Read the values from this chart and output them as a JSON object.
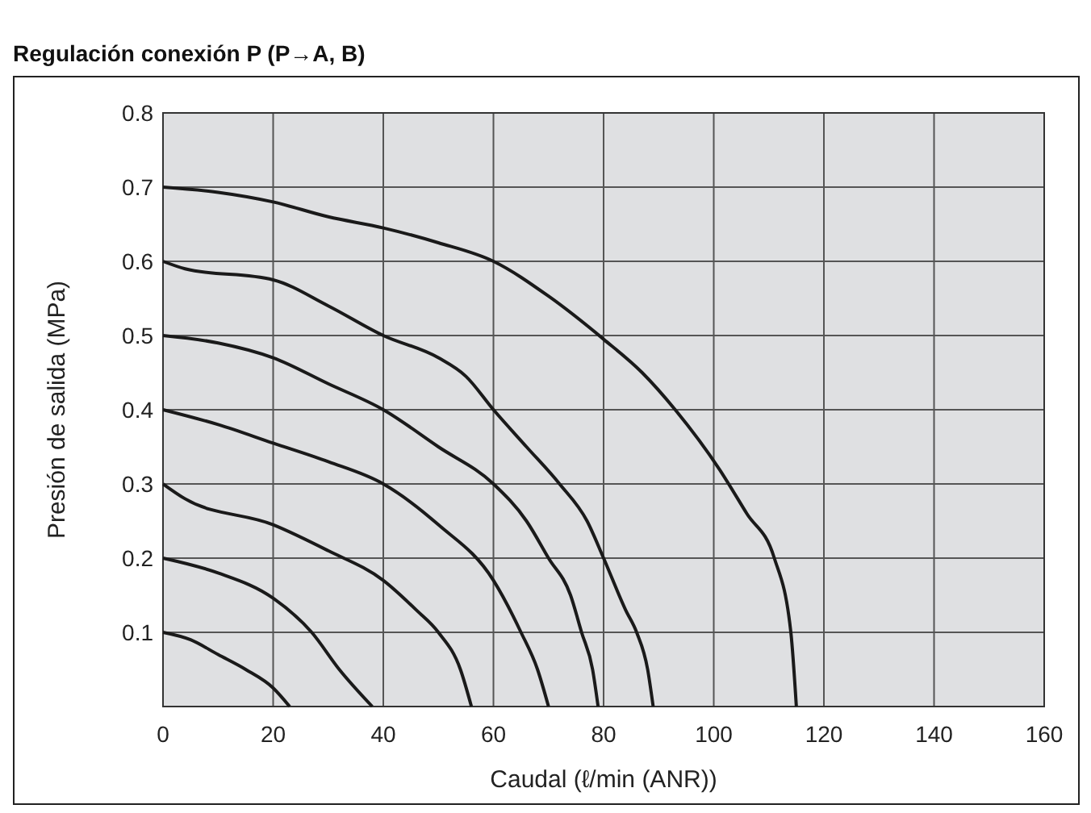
{
  "chart_data": {
    "type": "line",
    "title": "Regulación conexión P (P→A, B)",
    "xlabel": "Caudal (ℓ/min (ANR))",
    "ylabel": "Presión de salida (MPa)",
    "xlim": [
      0,
      160
    ],
    "xticks": [
      0,
      20,
      40,
      60,
      80,
      100,
      120,
      140,
      160
    ],
    "ylim": [
      0,
      0.8
    ],
    "yticks": [
      0.1,
      0.2,
      0.3,
      0.4,
      0.5,
      0.6,
      0.7,
      0.8
    ],
    "grid": true,
    "marker": "none",
    "line_style": "solid",
    "series": [
      {
        "color": "#1a1a1a",
        "x": [
          0,
          5,
          10,
          15,
          20,
          23
        ],
        "values": [
          0.1,
          0.09,
          0.07,
          0.05,
          0.025,
          0
        ]
      },
      {
        "color": "#1a1a1a",
        "x": [
          0,
          10,
          20,
          27,
          32,
          38
        ],
        "values": [
          0.2,
          0.18,
          0.146,
          0.1,
          0.05,
          0
        ]
      },
      {
        "color": "#1a1a1a",
        "x": [
          0,
          4,
          20,
          30,
          40,
          46,
          50,
          54,
          56
        ],
        "values": [
          0.3,
          0.28,
          0.245,
          0.21,
          0.17,
          0.13,
          0.1,
          0.05,
          0
        ]
      },
      {
        "color": "#1a1a1a",
        "x": [
          0,
          10,
          20,
          30,
          40,
          50,
          60,
          65,
          68,
          70
        ],
        "values": [
          0.4,
          0.38,
          0.355,
          0.33,
          0.3,
          0.245,
          0.17,
          0.1,
          0.05,
          0
        ]
      },
      {
        "color": "#1a1a1a",
        "x": [
          0,
          10,
          20,
          30,
          40,
          50,
          60,
          66,
          70,
          74,
          76,
          78,
          79
        ],
        "values": [
          0.5,
          0.49,
          0.47,
          0.435,
          0.4,
          0.35,
          0.3,
          0.25,
          0.2,
          0.15,
          0.1,
          0.05,
          0
        ]
      },
      {
        "color": "#1a1a1a",
        "x": [
          0,
          4,
          20,
          30,
          40,
          50,
          55,
          60,
          66,
          72,
          77,
          80,
          84,
          86,
          88,
          89
        ],
        "values": [
          0.6,
          0.59,
          0.575,
          0.54,
          0.5,
          0.47,
          0.445,
          0.4,
          0.35,
          0.3,
          0.25,
          0.2,
          0.13,
          0.1,
          0.05,
          0
        ]
      },
      {
        "color": "#1a1a1a",
        "x": [
          0,
          10,
          20,
          30,
          40,
          50,
          60,
          70,
          80,
          87,
          93,
          101,
          106,
          111,
          114,
          115
        ],
        "values": [
          0.7,
          0.693,
          0.68,
          0.66,
          0.645,
          0.625,
          0.6,
          0.553,
          0.495,
          0.45,
          0.4,
          0.32,
          0.26,
          0.2,
          0.1,
          0
        ]
      }
    ]
  }
}
